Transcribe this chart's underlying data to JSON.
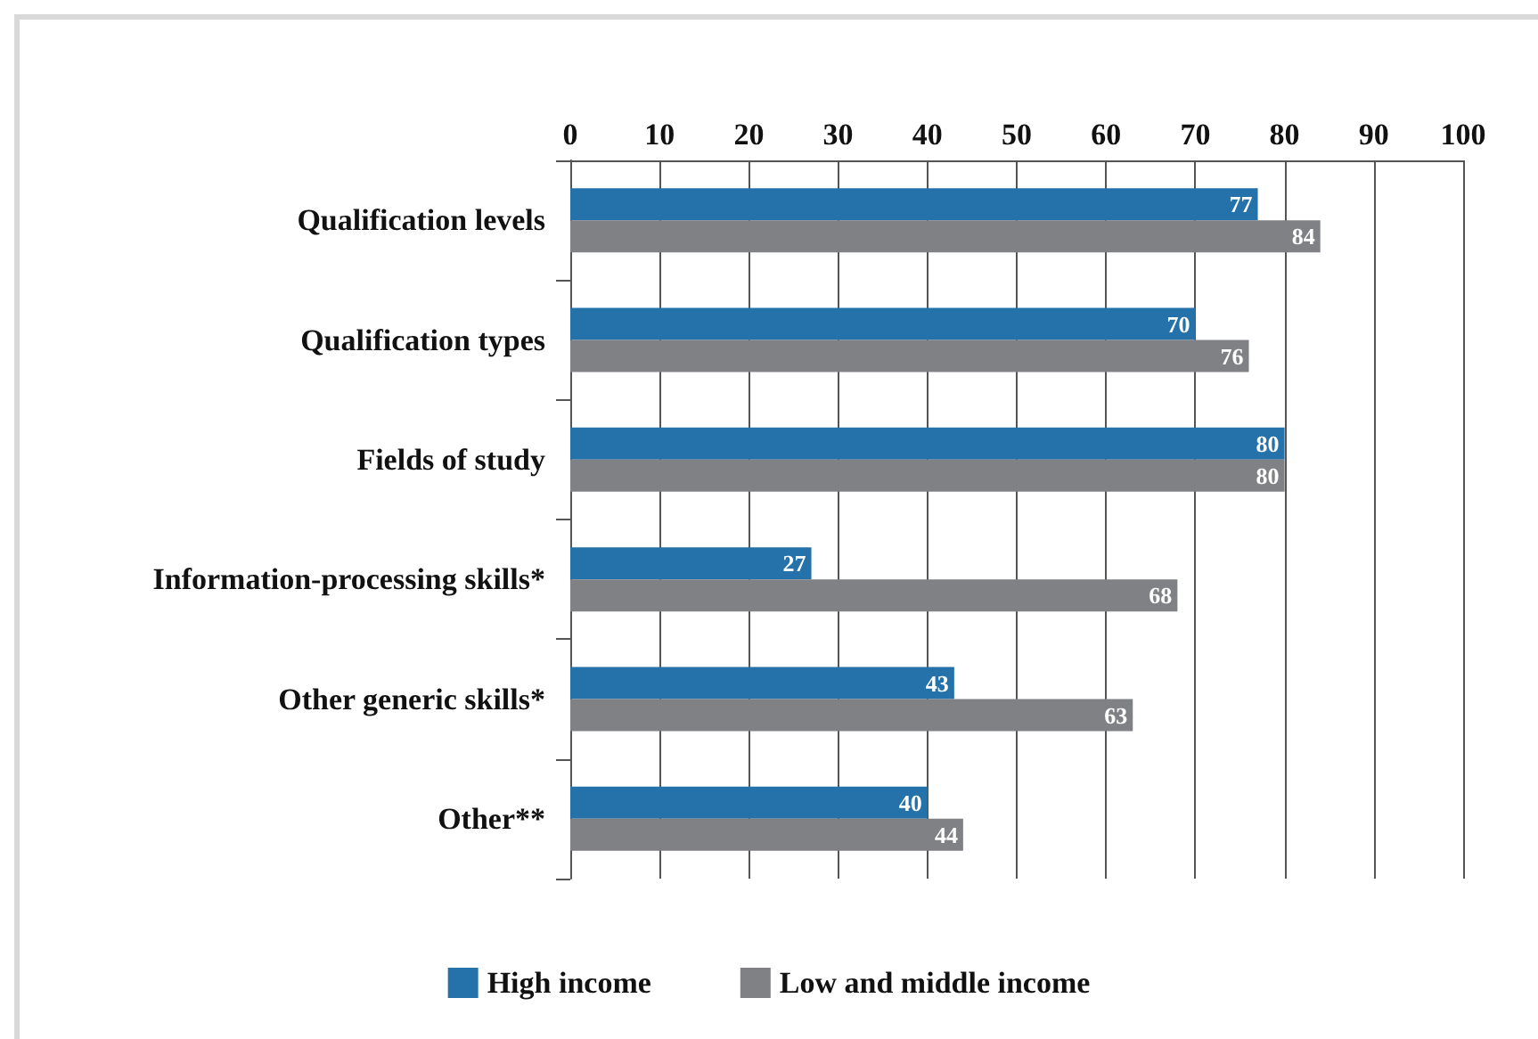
{
  "chart_data": {
    "type": "bar",
    "orientation": "horizontal",
    "categories": [
      "Qualification levels",
      "Qualification types",
      "Fields of study",
      "Information-processing skills*",
      "Other generic skills*",
      "Other**"
    ],
    "series": [
      {
        "name": "High income",
        "color": "#2571a9",
        "values": [
          77,
          70,
          80,
          27,
          43,
          40
        ]
      },
      {
        "name": "Low and middle income",
        "color": "#808184",
        "values": [
          84,
          76,
          80,
          68,
          63,
          44
        ]
      }
    ],
    "xlim": [
      0,
      100
    ],
    "xticks": [
      0,
      10,
      20,
      30,
      40,
      50,
      60,
      70,
      80,
      90,
      100
    ],
    "grid": "x",
    "legend": "bottom",
    "data_labels": true
  }
}
